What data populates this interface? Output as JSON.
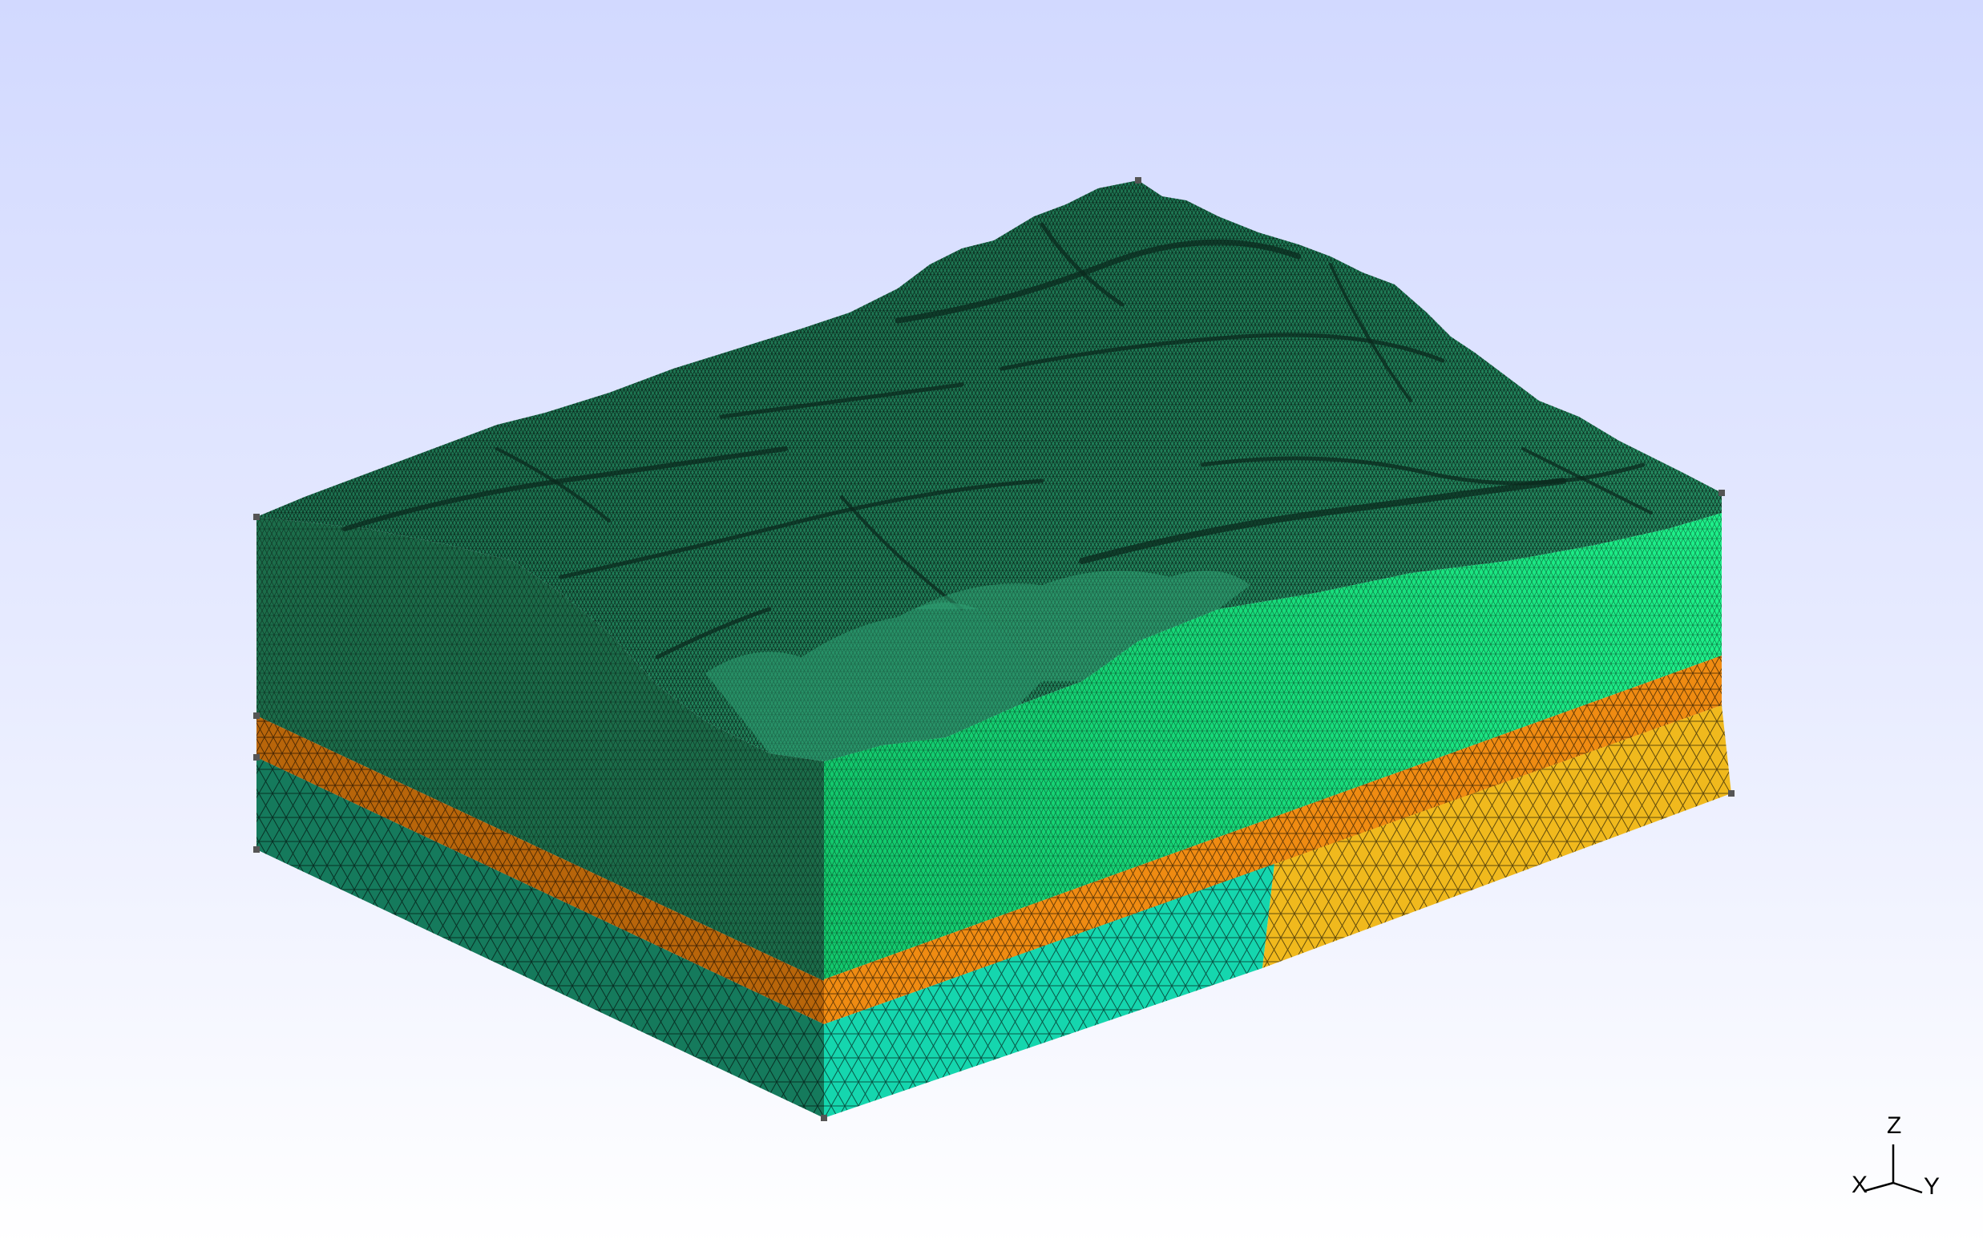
{
  "viewer": {
    "background_top": "#d2d9ff",
    "background_bottom": "#ffffff"
  },
  "model": {
    "kind": "tetrahedral mesh of layered terrain block",
    "terrain_color": "#1f7a56",
    "upper_layer_color": "#19e57f",
    "orange_layer_color": "#e8870f",
    "lower_teal_color": "#15d6ae",
    "lower_yellow_color": "#f0b91d",
    "left_side_dark_color": "#1c6d4a",
    "mesh_line_color": "#000000"
  },
  "axes": {
    "z_label": "Z",
    "x_label": "X",
    "y_label": "Y"
  }
}
